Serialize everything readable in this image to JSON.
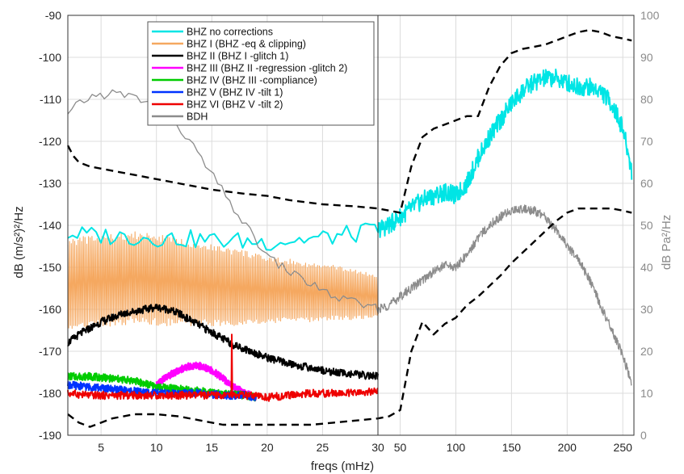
{
  "chart_data": {
    "type": "line",
    "xlabel": "freqs (mHz)",
    "ylabel_left": "dB (m/s²)²/Hz",
    "ylabel_right": "dB Pa²/Hz",
    "grid": true,
    "legend_position": "top-center-left",
    "panels": [
      {
        "name": "low",
        "xlim": [
          2,
          30
        ],
        "xticks": [
          "5",
          "10",
          "15",
          "20",
          "25",
          "30"
        ]
      },
      {
        "name": "high",
        "xlim": [
          30,
          260
        ],
        "xticks": [
          "50",
          "100",
          "150",
          "200",
          "250"
        ]
      }
    ],
    "left_axis": {
      "ylim": [
        -190,
        -90
      ],
      "ticks": [
        "-90",
        "-100",
        "-110",
        "-120",
        "-130",
        "-140",
        "-150",
        "-160",
        "-170",
        "-180",
        "-190"
      ]
    },
    "right_axis": {
      "ylim": [
        0,
        100
      ],
      "ticks": [
        "100",
        "90",
        "80",
        "70",
        "60",
        "50",
        "40",
        "30",
        "20",
        "10",
        "0"
      ]
    },
    "series": [
      {
        "name": "BHZ no corrections",
        "color": "#00e5e5",
        "axis": "left",
        "x": [
          2,
          5,
          10,
          15,
          20,
          25,
          28,
          30,
          40,
          50,
          60,
          70,
          80,
          90,
          100,
          110,
          120,
          130,
          140,
          150,
          160,
          170,
          180,
          190,
          200,
          210,
          220,
          230,
          240,
          250,
          258
        ],
        "y": [
          -142,
          -142.5,
          -143,
          -143.5,
          -144,
          -143,
          -142,
          -141,
          -140,
          -138,
          -136,
          -134,
          -133,
          -132,
          -133,
          -130,
          -124,
          -119,
          -115,
          -111,
          -108,
          -106,
          -105,
          -105,
          -106,
          -107,
          -107,
          -108,
          -111,
          -117,
          -127
        ]
      },
      {
        "name": "BHZ I (BHZ -eq & clipping)",
        "color": "#f5a860",
        "axis": "left",
        "x": [
          2,
          4,
          6,
          8,
          10,
          12,
          14,
          16,
          18,
          20,
          22,
          24,
          26,
          28,
          30
        ],
        "y": [
          -154,
          -153.5,
          -153,
          -152.5,
          -153,
          -153.5,
          -154,
          -154.5,
          -155,
          -155.5,
          -155.5,
          -156,
          -156,
          -156.5,
          -157
        ],
        "oscillation_amplitude": [
          11,
          11,
          11,
          11,
          11,
          10.5,
          10,
          9.5,
          9,
          8,
          7.5,
          7,
          6.5,
          6,
          5
        ]
      },
      {
        "name": "BHZ II (BHZ I -glitch 1)",
        "color": "#000000",
        "axis": "left",
        "x": [
          2,
          3,
          4,
          5,
          6,
          7,
          8,
          9,
          10,
          11,
          12,
          13,
          14,
          15,
          16,
          17,
          18,
          19,
          20,
          22,
          24,
          26,
          28,
          30
        ],
        "y": [
          -168,
          -166,
          -164.5,
          -163,
          -162,
          -161,
          -160.5,
          -160,
          -159.5,
          -160,
          -161,
          -162.5,
          -164,
          -165.5,
          -167,
          -168.5,
          -169.5,
          -170.5,
          -171.5,
          -173,
          -174,
          -175,
          -175.5,
          -176
        ]
      },
      {
        "name": "BHZ III (BHZ II -regression -glitch 2)",
        "color": "#ff00ff",
        "axis": "left",
        "x": [
          10,
          11,
          12,
          13,
          14,
          15,
          16,
          17,
          18,
          19
        ],
        "y": [
          -178,
          -176,
          -174.5,
          -173.5,
          -173.5,
          -174.5,
          -176.5,
          -178.5,
          -180,
          -181
        ]
      },
      {
        "name": "BHZ IV (BHZ III -compliance)",
        "color": "#00cc00",
        "axis": "left",
        "x": [
          2,
          4,
          6,
          8,
          10,
          12,
          14,
          16,
          18,
          19
        ],
        "y": [
          -176,
          -176,
          -176.5,
          -177,
          -178.5,
          -179,
          -179.5,
          -180,
          -180.5,
          -181
        ]
      },
      {
        "name": "BHZ V (BHZ IV -tilt 1)",
        "color": "#0033ff",
        "axis": "left",
        "x": [
          2,
          4,
          6,
          8,
          10,
          12,
          14,
          16,
          18,
          19
        ],
        "y": [
          -178,
          -178.5,
          -179,
          -179.5,
          -180,
          -180,
          -180,
          -180.5,
          -180.5,
          -181
        ]
      },
      {
        "name": "BHZ VI (BHZ V -tilt 2)",
        "color": "#ee0000",
        "axis": "left",
        "x": [
          2,
          4,
          6,
          8,
          10,
          12,
          14,
          16,
          18,
          20,
          22,
          24,
          26,
          28,
          30
        ],
        "y": [
          -180,
          -180.5,
          -180.5,
          -180.5,
          -180.5,
          -180.5,
          -180.5,
          -180.5,
          -180.5,
          -181,
          -180.5,
          -180,
          -180,
          -180,
          -179.5
        ]
      },
      {
        "name": "BDH",
        "color": "#8c8c8c",
        "axis": "right",
        "x": [
          2,
          3,
          4,
          5,
          6,
          7,
          8,
          9,
          10,
          11,
          12,
          13,
          14,
          15,
          16,
          17,
          18,
          19,
          20,
          22,
          24,
          26,
          28,
          30,
          40,
          50,
          60,
          70,
          80,
          90,
          100,
          110,
          120,
          130,
          140,
          150,
          160,
          170,
          180,
          190,
          200,
          210,
          220,
          230,
          240,
          250,
          258
        ],
        "y": [
          76,
          79,
          80.5,
          81,
          81.5,
          81,
          80.5,
          79.5,
          78,
          76,
          73.5,
          70,
          66,
          62,
          58,
          54,
          50,
          46.5,
          42.5,
          39,
          36,
          33,
          31.5,
          30,
          31,
          33,
          35,
          37,
          39,
          40.5,
          40,
          43,
          47,
          50,
          52,
          53.5,
          54,
          53.5,
          52,
          49,
          45,
          42,
          37,
          31,
          25,
          19,
          12
        ]
      },
      {
        "name": "",
        "color": "#000000",
        "dashed": true,
        "axis": "left",
        "x": [
          2,
          2.5,
          3,
          4,
          5,
          6,
          8,
          10,
          12,
          15,
          18,
          20,
          22,
          25,
          28,
          30,
          40,
          50,
          60,
          70,
          80,
          90,
          100,
          110,
          120,
          130,
          140,
          150,
          160,
          170,
          180,
          190,
          200,
          210,
          220,
          230,
          240,
          250,
          258
        ],
        "y": [
          -121,
          -123.5,
          -125,
          -126,
          -126.5,
          -127,
          -128,
          -129,
          -130,
          -131.5,
          -132.5,
          -133,
          -134,
          -135,
          -135.5,
          -136,
          -136.5,
          -137,
          -126,
          -119,
          -117,
          -116,
          -115,
          -114,
          -114,
          -107,
          -102,
          -99,
          -98,
          -97.5,
          -97,
          -96,
          -95,
          -94,
          -93.5,
          -94,
          -95,
          -95.5,
          -96
        ]
      },
      {
        "name": "",
        "color": "#000000",
        "dashed": true,
        "axis": "left",
        "x": [
          2,
          3,
          4,
          6,
          8,
          10,
          12,
          14,
          16,
          18,
          20,
          22,
          24,
          26,
          28,
          30,
          40,
          50,
          60,
          70,
          80,
          90,
          100,
          110,
          120,
          130,
          140,
          150,
          160,
          170,
          180,
          190,
          200,
          210,
          220,
          230,
          240,
          250,
          258
        ],
        "y": [
          -185,
          -187,
          -188,
          -186,
          -185,
          -185,
          -185.5,
          -186.5,
          -187.5,
          -187.5,
          -187.5,
          -187.5,
          -187.5,
          -187,
          -186.5,
          -186,
          -185.5,
          -184,
          -170,
          -163,
          -166,
          -163.5,
          -162,
          -159,
          -157,
          -154.5,
          -152,
          -149,
          -146.5,
          -144,
          -141.5,
          -139,
          -137,
          -136,
          -136,
          -136,
          -136,
          -136.5,
          -137
        ]
      }
    ]
  }
}
